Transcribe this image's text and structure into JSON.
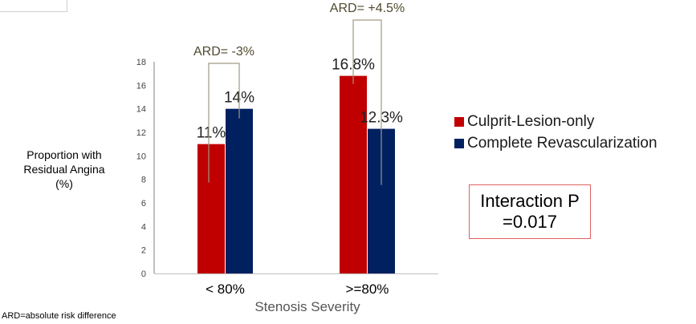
{
  "chart_data": {
    "type": "bar",
    "title": "",
    "ylabel": "Proportion with\nResidual Angina\n(%)",
    "xlabel": "Stenosis Severity",
    "ylim": [
      0,
      18
    ],
    "yticks": [
      0,
      2,
      4,
      6,
      8,
      10,
      12,
      14,
      16,
      18
    ],
    "categories": [
      "< 80%",
      ">=80%"
    ],
    "series": [
      {
        "name": "Culprit-Lesion-only",
        "values": [
          11,
          16.8
        ],
        "labels": [
          "11%",
          "16.8%"
        ],
        "color": "#c00000"
      },
      {
        "name": "Complete Revascularization",
        "values": [
          14,
          12.3
        ],
        "labels": [
          "14%",
          "12.3%"
        ],
        "color": "#002060"
      }
    ],
    "annotations": [
      {
        "category": "< 80%",
        "text": "ARD= -3%"
      },
      {
        "category": ">=80%",
        "text": "ARD= +4.5%"
      }
    ],
    "legend_position": "right",
    "grid": false
  },
  "interaction_box": {
    "line1": "Interaction P",
    "line2": "=0.017"
  },
  "footnote": "ARD=absolute risk difference",
  "colors": {
    "bracket": "#a09a82",
    "annotation_text": "#4f4a2f",
    "axis": "#808080"
  }
}
